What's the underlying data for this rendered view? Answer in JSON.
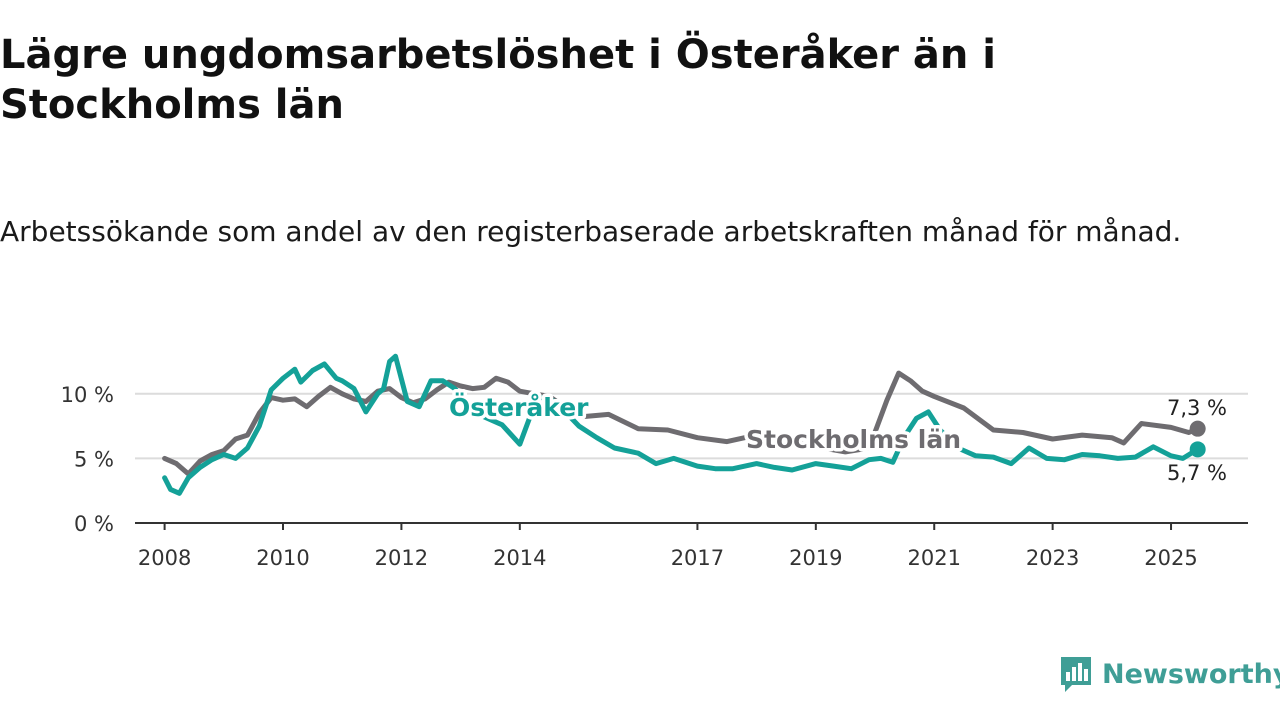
{
  "title": "Lägre ungdomsarbetslöshet i Österåker än i Stockholms län",
  "subtitle": "Arbetssökande som andel av den registerbaserade arbetskraften månad för månad.",
  "colors": {
    "osteraker": "#14a198",
    "stockholm": "#6e6c70",
    "grid": "#dcdcdc",
    "axis": "#333333"
  },
  "chart_data": {
    "type": "line",
    "title": "Lägre ungdomsarbetslöshet i Österåker än i Stockholms län",
    "subtitle": "Arbetssökande som andel av den registerbaserade arbetskraften månad för månad.",
    "xlabel": "",
    "ylabel": "",
    "xlim": [
      2007.5,
      2026.3
    ],
    "ylim": [
      0,
      13
    ],
    "grid": true,
    "legend": "inline labels",
    "x_ticks": [
      2008,
      2010,
      2012,
      2014,
      2017,
      2019,
      2021,
      2023,
      2025
    ],
    "x_tick_labels": [
      "2008",
      "2010",
      "2012",
      "2014",
      "2017",
      "2019",
      "2021",
      "2023",
      "2025"
    ],
    "y_ticks": [
      0,
      5,
      10
    ],
    "y_tick_labels": [
      "0 %",
      "5 %",
      "10 %"
    ],
    "series": [
      {
        "name": "Stockholms län",
        "label": "Stockholms län",
        "color": "#6e6c70",
        "end_label": "7,3 %",
        "x": [
          2008.0,
          2008.2,
          2008.4,
          2008.6,
          2008.8,
          2009.0,
          2009.2,
          2009.4,
          2009.6,
          2009.8,
          2010.0,
          2010.2,
          2010.4,
          2010.6,
          2010.8,
          2011.0,
          2011.2,
          2011.4,
          2011.6,
          2011.8,
          2012.0,
          2012.2,
          2012.4,
          2012.6,
          2012.8,
          2013.0,
          2013.2,
          2013.4,
          2013.6,
          2013.8,
          2014.0,
          2014.5,
          2015.0,
          2015.5,
          2016.0,
          2016.5,
          2017.0,
          2017.5,
          2018.0,
          2018.5,
          2019.0,
          2019.5,
          2019.9,
          2020.2,
          2020.4,
          2020.6,
          2020.8,
          2021.0,
          2021.5,
          2022.0,
          2022.5,
          2023.0,
          2023.5,
          2024.0,
          2024.2,
          2024.5,
          2025.0,
          2025.3,
          2025.45
        ],
        "y": [
          5.0,
          4.6,
          3.8,
          4.8,
          5.3,
          5.6,
          6.5,
          6.8,
          8.5,
          9.7,
          9.5,
          9.6,
          9.0,
          9.8,
          10.5,
          10.0,
          9.6,
          9.4,
          10.2,
          10.4,
          9.7,
          9.3,
          9.6,
          10.3,
          10.9,
          10.6,
          10.4,
          10.5,
          11.2,
          10.9,
          10.2,
          9.8,
          8.2,
          8.4,
          7.3,
          7.2,
          6.6,
          6.3,
          6.8,
          6.4,
          5.9,
          5.5,
          5.8,
          9.5,
          11.6,
          11.0,
          10.2,
          9.8,
          8.9,
          7.2,
          7.0,
          6.5,
          6.8,
          6.6,
          6.2,
          7.7,
          7.4,
          7.0,
          7.3
        ]
      },
      {
        "name": "Österåker",
        "label": "Österåker",
        "color": "#14a198",
        "end_label": "5,7 %",
        "x": [
          2008.0,
          2008.1,
          2008.25,
          2008.4,
          2008.6,
          2008.8,
          2009.0,
          2009.2,
          2009.4,
          2009.6,
          2009.8,
          2010.0,
          2010.2,
          2010.3,
          2010.5,
          2010.7,
          2010.9,
          2011.0,
          2011.2,
          2011.4,
          2011.6,
          2011.7,
          2011.8,
          2011.9,
          2012.1,
          2012.3,
          2012.5,
          2012.7,
          2012.9,
          2013.1,
          2013.4,
          2013.7,
          2014.0,
          2014.3,
          2014.6,
          2015.0,
          2015.3,
          2015.6,
          2016.0,
          2016.3,
          2016.6,
          2017.0,
          2017.3,
          2017.6,
          2018.0,
          2018.3,
          2018.6,
          2019.0,
          2019.3,
          2019.6,
          2019.9,
          2020.1,
          2020.3,
          2020.5,
          2020.7,
          2020.9,
          2021.1,
          2021.4,
          2021.7,
          2022.0,
          2022.3,
          2022.6,
          2022.9,
          2023.2,
          2023.5,
          2023.8,
          2024.1,
          2024.4,
          2024.7,
          2025.0,
          2025.2,
          2025.45
        ],
        "y": [
          3.5,
          2.6,
          2.3,
          3.5,
          4.3,
          4.9,
          5.3,
          5.0,
          5.8,
          7.5,
          10.3,
          11.2,
          11.9,
          10.9,
          11.8,
          12.3,
          11.2,
          11.0,
          10.4,
          8.6,
          10.0,
          10.4,
          12.5,
          12.9,
          9.4,
          9.0,
          11.0,
          11.0,
          10.4,
          9.5,
          8.2,
          7.6,
          6.1,
          9.8,
          9.4,
          7.5,
          6.6,
          5.8,
          5.4,
          4.6,
          5.0,
          4.4,
          4.2,
          4.2,
          4.6,
          4.3,
          4.1,
          4.6,
          4.4,
          4.2,
          4.9,
          5.0,
          4.7,
          6.7,
          8.1,
          8.6,
          7.2,
          5.8,
          5.2,
          5.1,
          4.6,
          5.8,
          5.0,
          4.9,
          5.3,
          5.2,
          5.0,
          5.1,
          5.9,
          5.2,
          5.0,
          5.7
        ]
      }
    ]
  },
  "logo": {
    "text": "Newsworthy",
    "icon": "bar-chart-logo-icon"
  }
}
